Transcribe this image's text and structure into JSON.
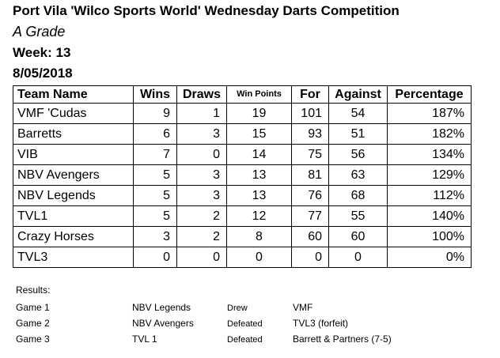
{
  "header": {
    "title": "Port Vila 'Wilco Sports World' Wednesday Darts Competition",
    "grade": "A Grade",
    "week": "Week: 13",
    "date": "8/05/2018"
  },
  "table": {
    "columns": [
      "Team Name",
      "Wins",
      "Draws",
      "Win Points",
      "For",
      "Against",
      "Percentage"
    ],
    "rows": [
      [
        "VMF 'Cudas",
        "9",
        "1",
        "19",
        "101",
        "54",
        "187%"
      ],
      [
        "Barretts",
        "6",
        "3",
        "15",
        "93",
        "51",
        "182%"
      ],
      [
        "VIB",
        "7",
        "0",
        "14",
        "75",
        "56",
        "134%"
      ],
      [
        "NBV Avengers",
        "5",
        "3",
        "13",
        "81",
        "63",
        "129%"
      ],
      [
        "NBV Legends",
        "5",
        "3",
        "13",
        "76",
        "68",
        "112%"
      ],
      [
        "TVL1",
        "5",
        "2",
        "12",
        "77",
        "55",
        "140%"
      ],
      [
        "Crazy Horses",
        "3",
        "2",
        "8",
        "60",
        "60",
        "100%"
      ],
      [
        "TVL3",
        "0",
        "0",
        "0",
        "0",
        "0",
        "0%"
      ]
    ]
  },
  "results": {
    "label": "Results:",
    "games": [
      [
        "Game 1",
        "NBV Legends",
        "Drew",
        "VMF"
      ],
      [
        "Game 2",
        "NBV Avengers",
        "Defeated",
        "TVL3 (forfeit)"
      ],
      [
        "Game 3",
        "TVL 1",
        "Defeated",
        "Barrett & Partners (7-5)"
      ]
    ]
  }
}
